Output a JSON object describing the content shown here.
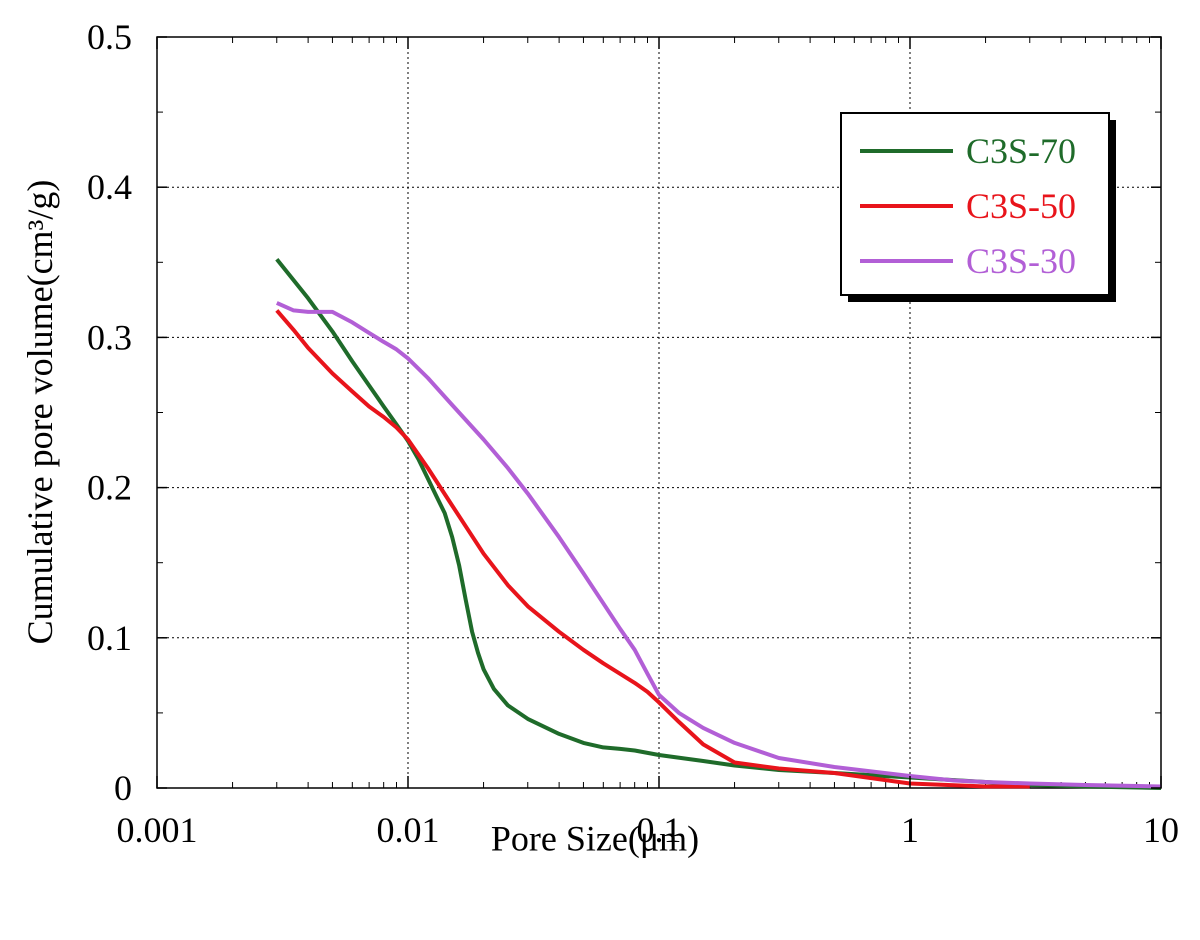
{
  "chart_data": {
    "type": "line",
    "title": "",
    "xlabel": "Pore Size(μm)",
    "ylabel": "Cumulative pore volume(cm³/g)",
    "xscale": "log",
    "xlim": [
      0.001,
      10
    ],
    "ylim": [
      0,
      0.5
    ],
    "x_ticks": [
      "0.001",
      "0.01",
      "0.1",
      "1",
      "10"
    ],
    "y_ticks": [
      "0",
      "0.1",
      "0.2",
      "0.3",
      "0.4",
      "0.5"
    ],
    "grid": true,
    "legend_position": "top-right",
    "series": [
      {
        "name": "C3S-70",
        "color": "#1f6b2a",
        "x": [
          0.003,
          0.004,
          0.005,
          0.006,
          0.007,
          0.008,
          0.009,
          0.01,
          0.011,
          0.012,
          0.013,
          0.014,
          0.015,
          0.016,
          0.017,
          0.018,
          0.019,
          0.02,
          0.022,
          0.025,
          0.03,
          0.04,
          0.05,
          0.06,
          0.07,
          0.08,
          0.1,
          0.15,
          0.2,
          0.3,
          0.5,
          1,
          2,
          3,
          5,
          10
        ],
        "y": [
          0.352,
          0.326,
          0.304,
          0.284,
          0.268,
          0.254,
          0.242,
          0.231,
          0.219,
          0.206,
          0.194,
          0.183,
          0.167,
          0.148,
          0.125,
          0.104,
          0.09,
          0.079,
          0.066,
          0.055,
          0.046,
          0.036,
          0.03,
          0.027,
          0.026,
          0.025,
          0.022,
          0.018,
          0.015,
          0.012,
          0.01,
          0.007,
          0.004,
          0.002,
          0.001,
          0.0
        ]
      },
      {
        "name": "C3S-50",
        "color": "#e8141b",
        "x": [
          0.003,
          0.0035,
          0.004,
          0.005,
          0.006,
          0.007,
          0.008,
          0.009,
          0.01,
          0.012,
          0.015,
          0.02,
          0.025,
          0.03,
          0.04,
          0.05,
          0.06,
          0.07,
          0.08,
          0.09,
          0.1,
          0.12,
          0.15,
          0.2,
          0.3,
          0.5,
          1,
          2,
          3
        ],
        "y": [
          0.318,
          0.305,
          0.293,
          0.276,
          0.264,
          0.254,
          0.247,
          0.24,
          0.232,
          0.213,
          0.188,
          0.156,
          0.135,
          0.121,
          0.104,
          0.092,
          0.083,
          0.076,
          0.07,
          0.064,
          0.057,
          0.044,
          0.029,
          0.017,
          0.013,
          0.01,
          0.003,
          0.001,
          0.001
        ]
      },
      {
        "name": "C3S-30",
        "color": "#b25fd6",
        "x": [
          0.003,
          0.0035,
          0.004,
          0.005,
          0.006,
          0.007,
          0.008,
          0.009,
          0.01,
          0.012,
          0.015,
          0.02,
          0.025,
          0.03,
          0.04,
          0.05,
          0.06,
          0.07,
          0.08,
          0.09,
          0.1,
          0.12,
          0.15,
          0.2,
          0.3,
          0.5,
          1,
          1.5,
          2,
          3,
          5,
          10
        ],
        "y": [
          0.323,
          0.318,
          0.317,
          0.317,
          0.31,
          0.303,
          0.297,
          0.292,
          0.286,
          0.273,
          0.255,
          0.232,
          0.213,
          0.196,
          0.167,
          0.143,
          0.123,
          0.106,
          0.092,
          0.076,
          0.062,
          0.05,
          0.04,
          0.03,
          0.02,
          0.014,
          0.008,
          0.005,
          0.004,
          0.003,
          0.002,
          0.001
        ]
      }
    ]
  }
}
